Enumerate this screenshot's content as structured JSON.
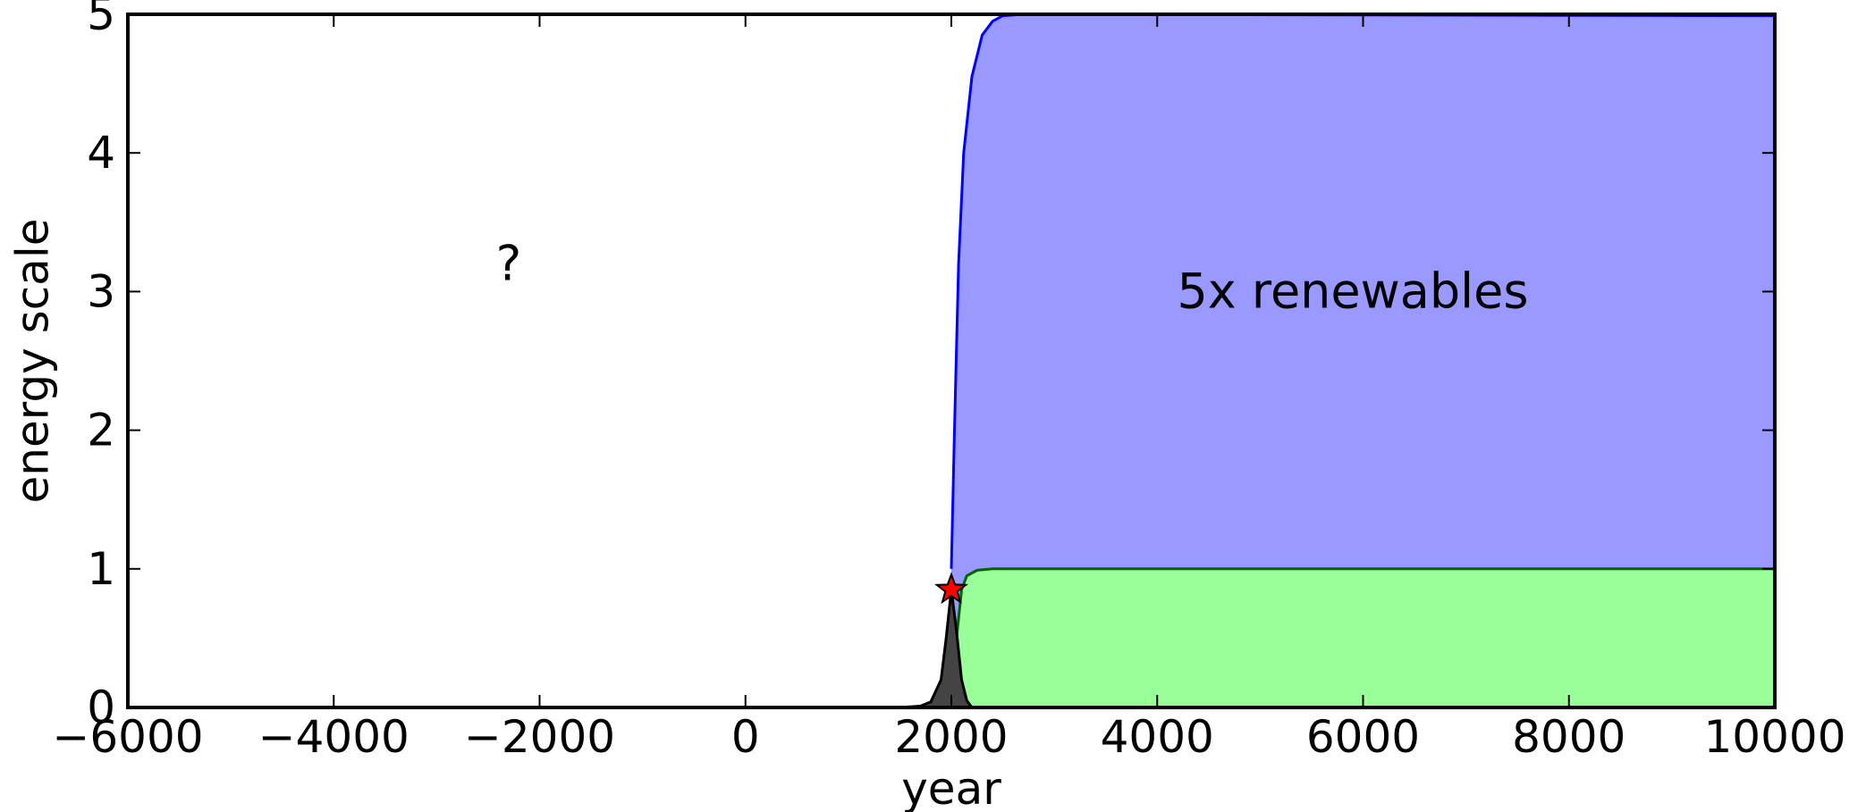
{
  "chart_data": {
    "type": "area",
    "xlabel": "year",
    "ylabel": "energy scale",
    "xlim": [
      -6000,
      10000
    ],
    "ylim": [
      0,
      5
    ],
    "xticks": [
      -6000,
      -4000,
      -2000,
      0,
      2000,
      4000,
      6000,
      8000,
      10000
    ],
    "xtick_labels": [
      "−6000",
      "−4000",
      "−2000",
      "0",
      "2000",
      "4000",
      "6000",
      "8000",
      "10000"
    ],
    "yticks": [
      0,
      1,
      2,
      3,
      4,
      5
    ],
    "ytick_labels": [
      "0",
      "1",
      "2",
      "3",
      "4",
      "5"
    ],
    "grid": false,
    "series": [
      {
        "color": "#9999ff",
        "edge_color": "#0000ff",
        "points": [
          [
            2000,
            1.0
          ],
          [
            2030,
            2.0
          ],
          [
            2070,
            3.2
          ],
          [
            2120,
            4.0
          ],
          [
            2200,
            4.55
          ],
          [
            2300,
            4.85
          ],
          [
            2400,
            4.95
          ],
          [
            2500,
            4.99
          ],
          [
            2700,
            5.0
          ],
          [
            10000,
            4.99
          ]
        ]
      },
      {
        "color": "#99ff99",
        "edge_color": "#006400",
        "points": [
          [
            2000,
            0.0
          ],
          [
            2050,
            0.5
          ],
          [
            2100,
            0.85
          ],
          [
            2150,
            0.95
          ],
          [
            2250,
            0.99
          ],
          [
            2400,
            1.0
          ],
          [
            10000,
            1.0
          ]
        ]
      },
      {
        "color": "#444444",
        "edge_color": "#000000",
        "points": [
          [
            1500,
            0.0
          ],
          [
            1700,
            0.01
          ],
          [
            1800,
            0.04
          ],
          [
            1900,
            0.2
          ],
          [
            1950,
            0.5
          ],
          [
            2000,
            0.85
          ],
          [
            2050,
            0.55
          ],
          [
            2100,
            0.2
          ],
          [
            2150,
            0.05
          ],
          [
            2200,
            0.0
          ]
        ]
      }
    ],
    "marker": {
      "x": 2000,
      "y": 0.85,
      "shape": "star",
      "color": "#ff0000"
    },
    "annotations": [
      {
        "text": "?",
        "x": -2300,
        "y": 3.2
      },
      {
        "text": "5x renewables",
        "x": 5900,
        "y": 3.0
      }
    ]
  }
}
